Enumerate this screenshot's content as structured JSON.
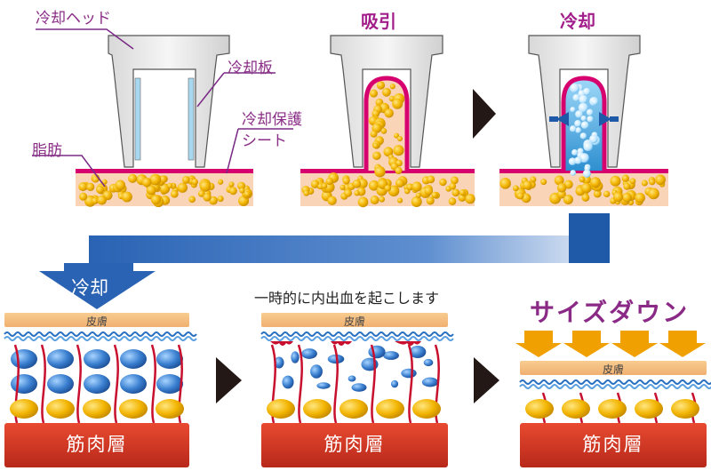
{
  "top": {
    "labels": {
      "cooling_head": "冷却ヘッド",
      "cooling_plate": "冷却板",
      "protective_sheet_line1": "冷却保護",
      "protective_sheet_line2": "シート",
      "fat": "脂肪"
    },
    "step_suction": "吸引",
    "step_cooling": "冷却"
  },
  "bottom": {
    "cooling_arrow_label": "冷却",
    "internal_bleeding_text": "一時的に内出血を起こします",
    "size_down_title": "サイズダウン",
    "skin_label": "皮膚",
    "muscle_label": "筋肉層"
  },
  "colors": {
    "magenta": "#d6006e",
    "fat_yellow": "#f2b400",
    "blue_arrow": "#1f5aa8",
    "skin_orange": "#f5c080",
    "muscle_red": "#d93a28",
    "title_purple": "#8a2a86"
  }
}
